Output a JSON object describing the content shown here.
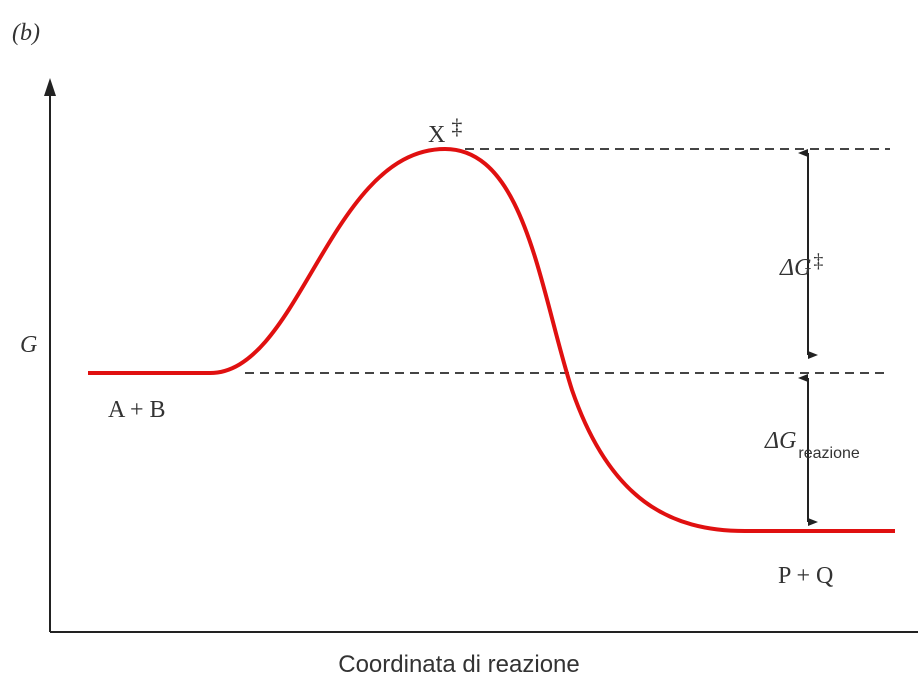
{
  "panel_label": "(b)",
  "y_axis_label": "G",
  "x_axis_label": "Coordinata di reazione",
  "transition_state": {
    "text": "X",
    "mark": "‡"
  },
  "reactants": "A + B",
  "products": "P + Q",
  "activation_energy": {
    "symbol": "ΔG",
    "mark": "‡"
  },
  "reaction_energy": {
    "symbol": "ΔG",
    "subscript": "reazione"
  }
}
